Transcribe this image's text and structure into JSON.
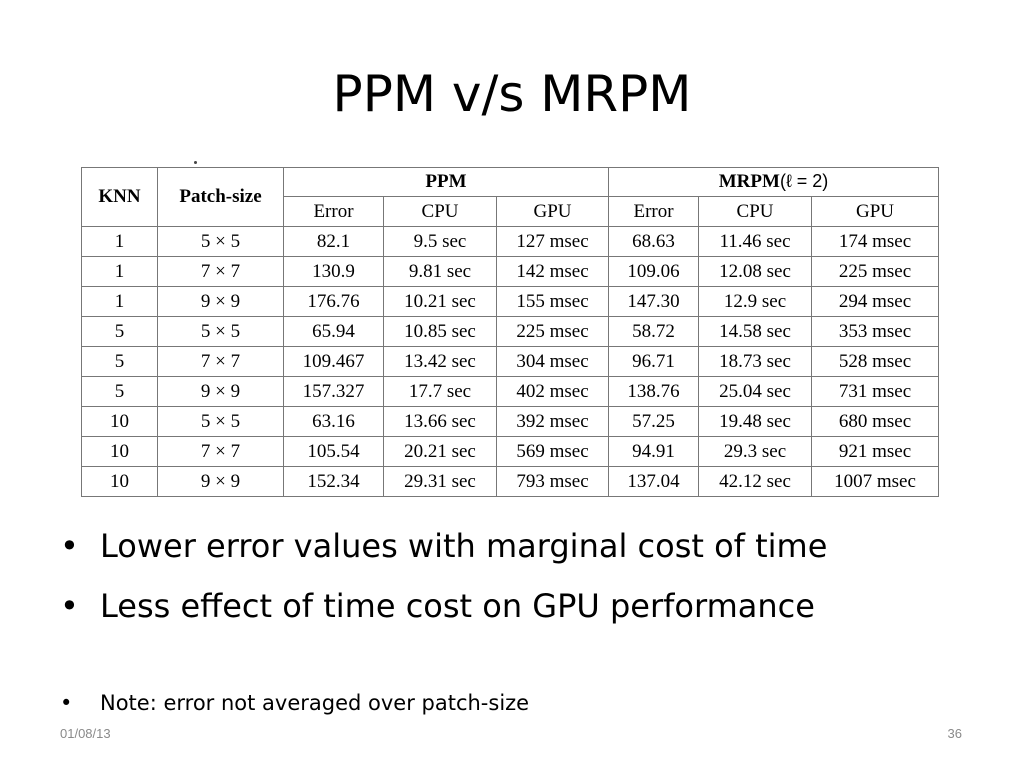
{
  "title": "PPM v/s MRPM",
  "table": {
    "col_knn": "KNN",
    "col_patch": "Patch-size",
    "group_ppm": "PPM",
    "group_mrpm": "MRPM",
    "mrpm_param": "(ℓ = 2)",
    "sub_headers": [
      "Error",
      "CPU",
      "GPU",
      "Error",
      "CPU",
      "GPU"
    ],
    "rows": [
      [
        "1",
        "5 × 5",
        "82.1",
        "9.5 sec",
        "127 msec",
        "68.63",
        "11.46 sec",
        "174 msec"
      ],
      [
        "1",
        "7 × 7",
        "130.9",
        "9.81 sec",
        "142 msec",
        "109.06",
        "12.08 sec",
        "225 msec"
      ],
      [
        "1",
        "9 × 9",
        "176.76",
        "10.21 sec",
        "155 msec",
        "147.30",
        "12.9 sec",
        "294 msec"
      ],
      [
        "5",
        "5 × 5",
        "65.94",
        "10.85 sec",
        "225 msec",
        "58.72",
        "14.58 sec",
        "353 msec"
      ],
      [
        "5",
        "7 × 7",
        "109.467",
        "13.42 sec",
        "304 msec",
        "96.71",
        "18.73 sec",
        "528 msec"
      ],
      [
        "5",
        "9 × 9",
        "157.327",
        "17.7 sec",
        "402 msec",
        "138.76",
        "25.04 sec",
        "731 msec"
      ],
      [
        "10",
        "5 × 5",
        "63.16",
        "13.66 sec",
        "392 msec",
        "57.25",
        "19.48 sec",
        "680 msec"
      ],
      [
        "10",
        "7 × 7",
        "105.54",
        "20.21 sec",
        "569 msec",
        "94.91",
        "29.3 sec",
        "921 msec"
      ],
      [
        "10",
        "9 × 9",
        "152.34",
        "29.31 sec",
        "793 msec",
        "137.04",
        "42.12 sec",
        "1007 msec"
      ]
    ]
  },
  "bullets": [
    "Lower error values with marginal cost of time",
    "Less effect of time cost on GPU performance"
  ],
  "note": "Note: error not averaged over patch-size",
  "footer": {
    "date": "01/08/13",
    "page": "36"
  }
}
